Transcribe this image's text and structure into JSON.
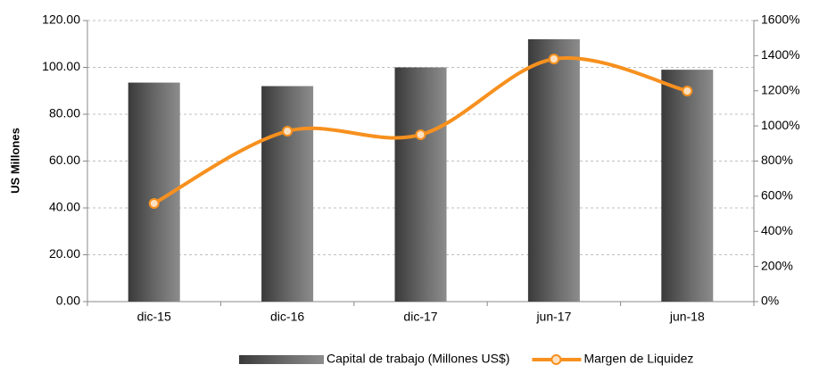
{
  "chart_data": {
    "type": "bar",
    "y_label": "US Millones",
    "categories": [
      "dic-15",
      "dic-16",
      "dic-17",
      "jun-17",
      "jun-18"
    ],
    "series": [
      {
        "name": "Capital de trabajo (Millones US$)",
        "color": "#595959",
        "values": [
          93.5,
          92,
          100,
          112,
          99
        ]
      },
      {
        "name": "Margen de Liquidez",
        "color": "#f7901e",
        "type": "line",
        "axis": "y2",
        "values": [
          559,
          970,
          950,
          1381,
          1199
        ]
      }
    ],
    "ylim": [
      0,
      120
    ],
    "yticks": [
      {
        "value": 0,
        "label": "0.00"
      },
      {
        "value": 20,
        "label": "20.00"
      },
      {
        "value": 40,
        "label": "40.00"
      },
      {
        "value": 60,
        "label": "60.00"
      },
      {
        "value": 80,
        "label": "80.00"
      },
      {
        "value": 100,
        "label": "100.00"
      },
      {
        "value": 120,
        "label": "120.00"
      }
    ],
    "y2lim": [
      0,
      1600
    ],
    "y2ticks": [
      {
        "value": 0,
        "label": "0%"
      },
      {
        "value": 200,
        "label": "200%"
      },
      {
        "value": 400,
        "label": "400%"
      },
      {
        "value": 600,
        "label": "600%"
      },
      {
        "value": 800,
        "label": "800%"
      },
      {
        "value": 1000,
        "label": "1000%"
      },
      {
        "value": 1200,
        "label": "1200%"
      },
      {
        "value": 1400,
        "label": "1400%"
      },
      {
        "value": 1600,
        "label": "1600%"
      }
    ],
    "grid": true,
    "legend": "bottom"
  }
}
